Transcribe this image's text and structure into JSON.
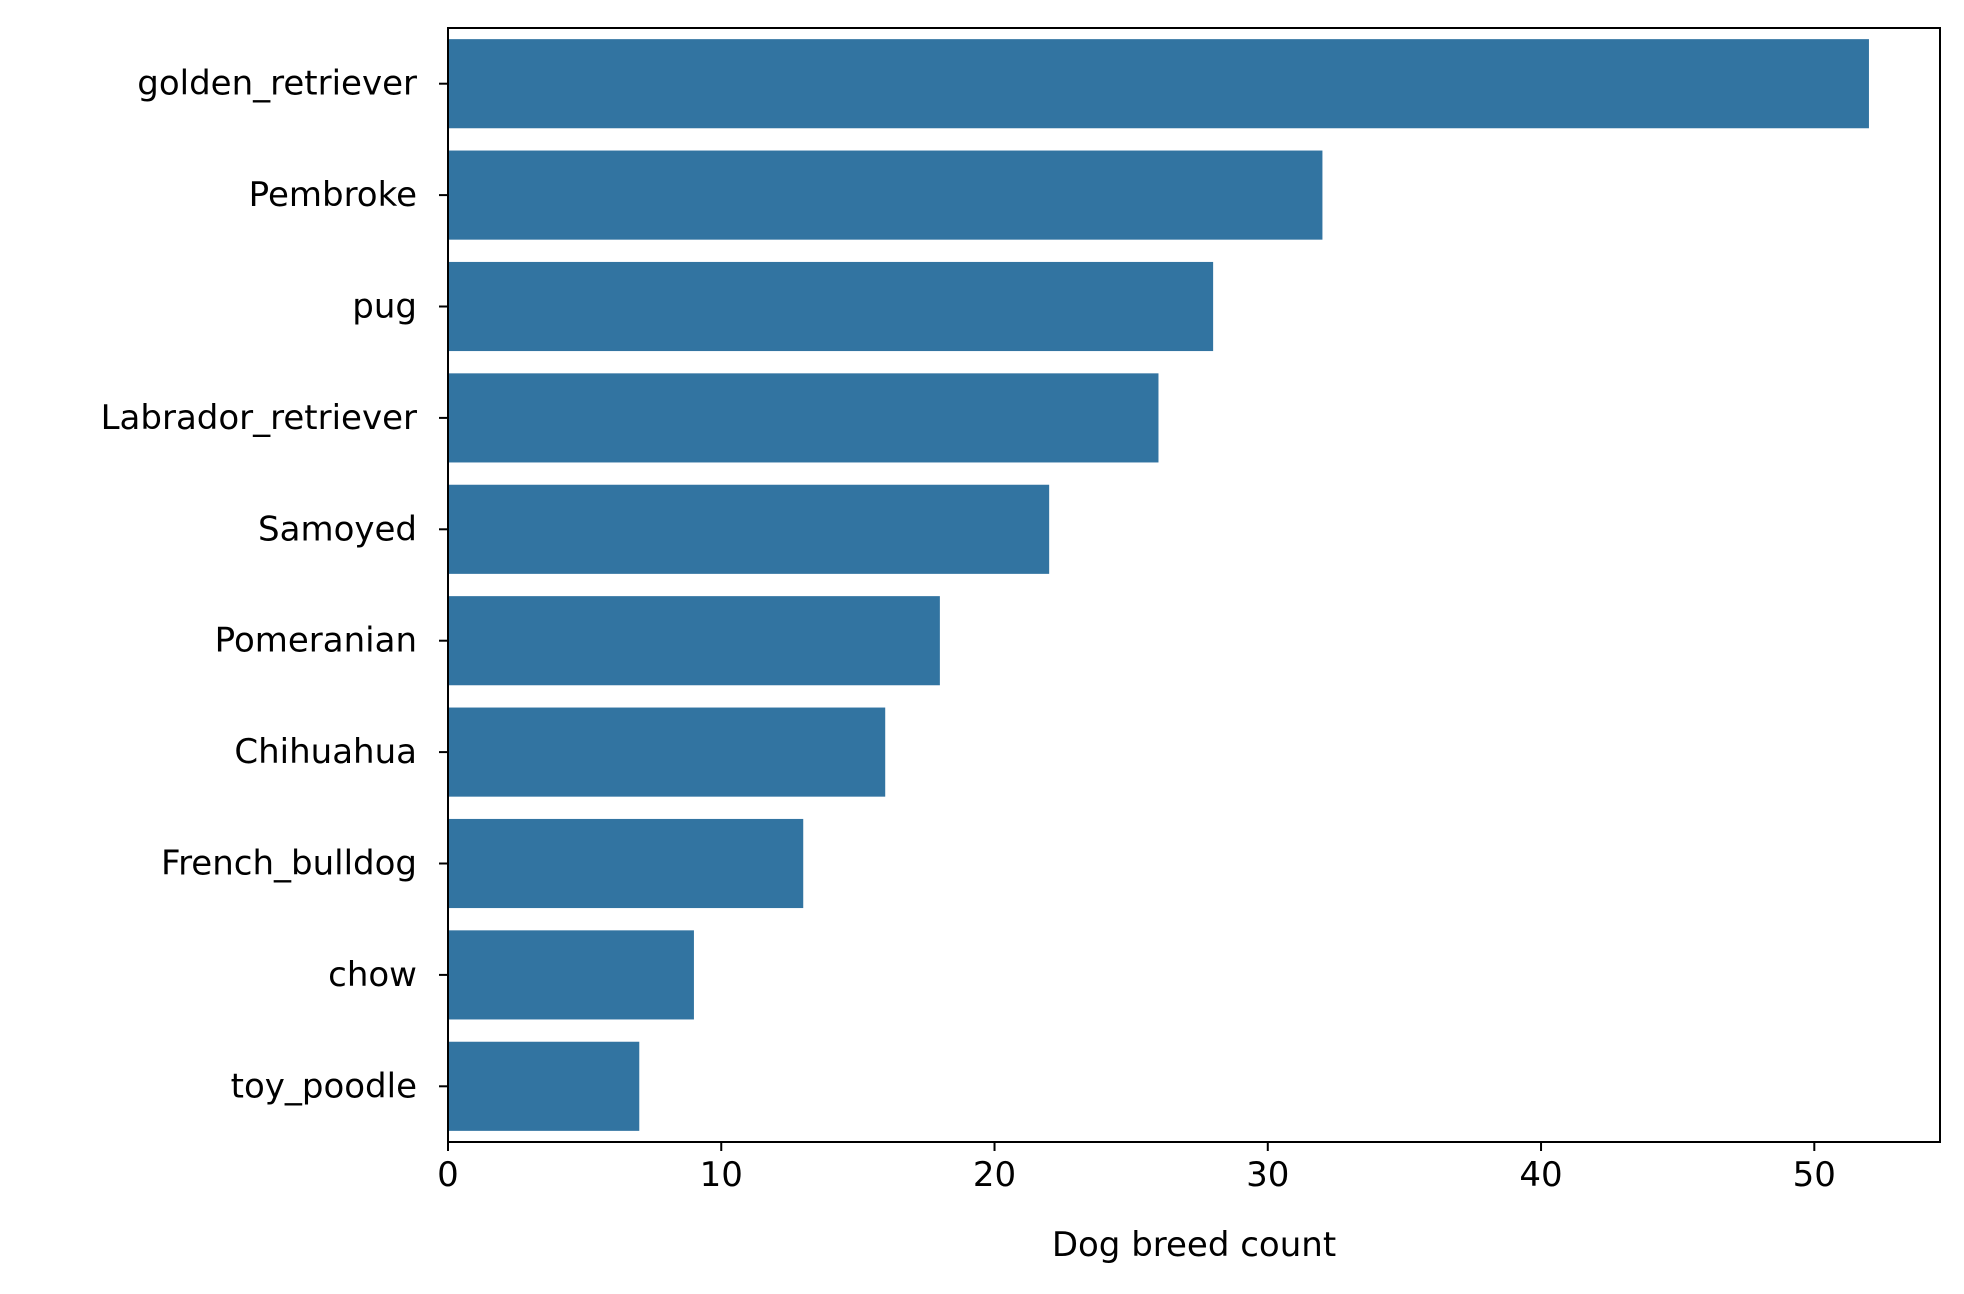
{
  "chart_data": {
    "type": "bar",
    "orientation": "horizontal",
    "categories": [
      "golden_retriever",
      "Pembroke",
      "pug",
      "Labrador_retriever",
      "Samoyed",
      "Pomeranian",
      "Chihuahua",
      "French_bulldog",
      "chow",
      "toy_poodle"
    ],
    "values": [
      52,
      32,
      28,
      26,
      22,
      18,
      16,
      13,
      9,
      7
    ],
    "title": "",
    "xlabel": "Dog breed count",
    "ylabel": "",
    "xlim": [
      0,
      54.6
    ],
    "xticks": [
      "0",
      "10",
      "20",
      "30",
      "40",
      "50"
    ],
    "grid": false,
    "bar_color": "#3274a1"
  }
}
